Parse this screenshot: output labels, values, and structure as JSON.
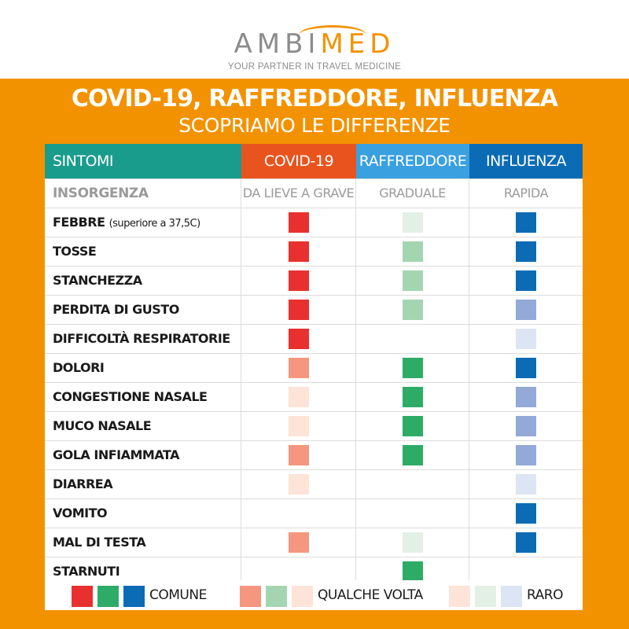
{
  "logo": {
    "part1": "AMBI",
    "part2": "MED",
    "tagline": "YOUR PARTNER IN TRAVEL MEDICINE"
  },
  "title": "COVID-19, RAFFREDDORE, INFLUENZA",
  "subtitle": "SCOPRIAMO LE DIFFERENZE",
  "colors": {
    "background": "#f39200",
    "covid_common": "#e8312f",
    "covid_sometimes": "#f4977e",
    "covid_rare": "#fde3d8",
    "cold_common": "#2eac67",
    "cold_sometimes": "#a3d6b0",
    "cold_rare": "#e3f0e6",
    "flu_common": "#0b6cb5",
    "flu_sometimes": "#93a9d8",
    "flu_rare": "#dde4f3"
  },
  "table": {
    "headers": [
      "SINTOMI",
      "COVID-19",
      "RAFFREDDORE",
      "INFLUENZA"
    ],
    "onset": {
      "label": "INSORGENZA",
      "covid": "DA LIEVE A GRAVE",
      "cold": "GRADUALE",
      "flu": "RAPIDA"
    },
    "rows": [
      {
        "label": "FEBBRE",
        "note": "(superiore a 37,5C)",
        "covid": "comune",
        "cold": "raro",
        "flu": "comune"
      },
      {
        "label": "TOSSE",
        "note": "",
        "covid": "comune",
        "cold": "qualche volta",
        "flu": "comune"
      },
      {
        "label": "STANCHEZZA",
        "note": "",
        "covid": "comune",
        "cold": "qualche volta",
        "flu": "comune"
      },
      {
        "label": "PERDITA DI GUSTO",
        "note": "",
        "covid": "comune",
        "cold": "qualche volta",
        "flu": "qualche volta"
      },
      {
        "label": "DIFFICOLTÀ RESPIRATORIE",
        "note": "",
        "covid": "comune",
        "cold": "",
        "flu": "raro"
      },
      {
        "label": "DOLORI",
        "note": "",
        "covid": "qualche volta",
        "cold": "comune",
        "flu": "comune"
      },
      {
        "label": "CONGESTIONE NASALE",
        "note": "",
        "covid": "raro",
        "cold": "comune",
        "flu": "qualche volta"
      },
      {
        "label": "MUCO NASALE",
        "note": "",
        "covid": "raro",
        "cold": "comune",
        "flu": "qualche volta"
      },
      {
        "label": "GOLA INFIAMMATA",
        "note": "",
        "covid": "qualche volta",
        "cold": "comune",
        "flu": "qualche volta"
      },
      {
        "label": "DIARREA",
        "note": "",
        "covid": "raro",
        "cold": "",
        "flu": "raro"
      },
      {
        "label": "VOMITO",
        "note": "",
        "covid": "",
        "cold": "",
        "flu": "comune"
      },
      {
        "label": "MAL DI TESTA",
        "note": "",
        "covid": "qualche volta",
        "cold": "raro",
        "flu": "comune"
      },
      {
        "label": "STARNUTI",
        "note": "",
        "covid": "",
        "cold": "comune",
        "flu": ""
      }
    ]
  },
  "legend": {
    "common": "COMUNE",
    "sometimes": "QUALCHE VOLTA",
    "rare": "RARO"
  }
}
